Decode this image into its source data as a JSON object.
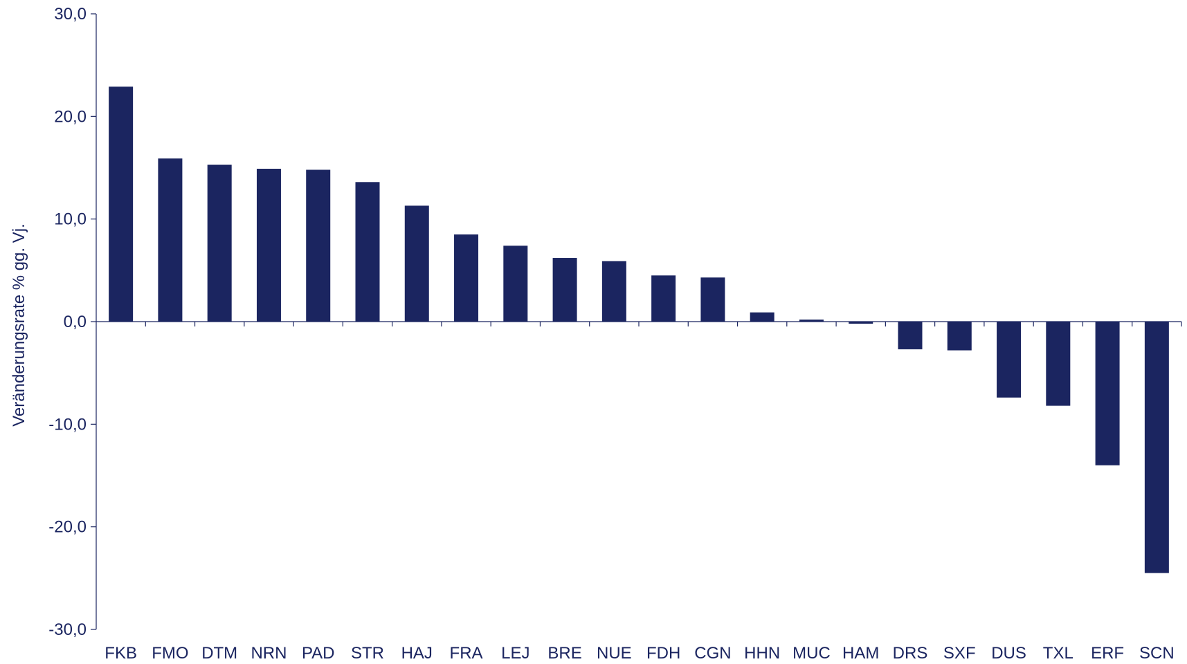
{
  "chart_data": {
    "type": "bar",
    "categories": [
      "FKB",
      "FMO",
      "DTM",
      "NRN",
      "PAD",
      "STR",
      "HAJ",
      "FRA",
      "LEJ",
      "BRE",
      "NUE",
      "FDH",
      "CGN",
      "HHN",
      "MUC",
      "HAM",
      "DRS",
      "SXF",
      "DUS",
      "TXL",
      "ERF",
      "SCN"
    ],
    "values": [
      22.9,
      15.9,
      15.3,
      14.9,
      14.8,
      13.6,
      11.3,
      8.5,
      7.4,
      6.2,
      5.9,
      4.5,
      4.3,
      0.9,
      0.2,
      -0.2,
      -2.7,
      -2.8,
      -7.4,
      -8.2,
      -14.0,
      -24.5
    ],
    "xlabel": "",
    "ylabel": "Veränderungsrate % gg. Vj.",
    "ylim": [
      -30,
      30
    ],
    "yticks": [
      30,
      20,
      10,
      0,
      -10,
      -20,
      -30
    ],
    "ytick_labels": [
      "30,0",
      "20,0",
      "10,0",
      "0,0",
      "-10,0",
      "-20,0",
      "-30,0"
    ],
    "grid": false,
    "legend": "none",
    "bar_color": "#1b2560",
    "text_color": "#1b2560",
    "axis_color": "#1b2560"
  }
}
